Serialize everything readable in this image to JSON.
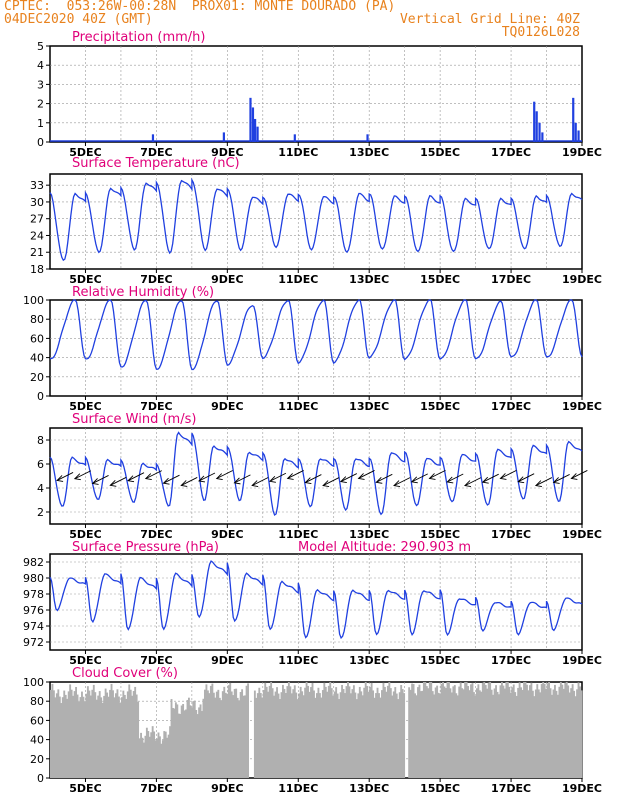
{
  "header": {
    "line1_left": "CPTEC:  053:26W-00:28N  PROX01: MONTE DOURADO (PA)",
    "line2_left": "04DEC2020 40Z (GMT)",
    "line2_right": "Vertical Grid Line: 40Z",
    "line3_right": "TQ0126L028"
  },
  "colors": {
    "header": "#e8821e",
    "title": "#e0007a",
    "series": "#2040e0",
    "cloud": "#b0b0b0",
    "wind_arrow": "#000000"
  },
  "panels": {
    "precip": {
      "title": "Precipitation (mm/h)",
      "yticks": [
        "5",
        "4",
        "3",
        "2",
        "1",
        "0"
      ],
      "xticks": [
        "5DEC",
        "7DEC",
        "9DEC",
        "11DEC",
        "13DEC",
        "15DEC",
        "17DEC",
        "19DEC"
      ]
    },
    "temp": {
      "title": "Surface Temperature (nC)",
      "yticks": [
        "33",
        "30",
        "27",
        "24",
        "21",
        "18"
      ],
      "xticks": [
        "5DEC",
        "7DEC",
        "9DEC",
        "11DEC",
        "13DEC",
        "15DEC",
        "17DEC",
        "19DEC"
      ]
    },
    "rh": {
      "title": "Relative Humidity (%)",
      "yticks": [
        "100",
        "80",
        "60",
        "40",
        "20",
        "0"
      ],
      "xticks": [
        "5DEC",
        "7DEC",
        "9DEC",
        "11DEC",
        "13DEC",
        "15DEC",
        "17DEC",
        "19DEC"
      ]
    },
    "wind": {
      "title": "Surface Wind (m/s)",
      "yticks": [
        "8",
        "6",
        "4",
        "2"
      ],
      "xticks": [
        "5DEC",
        "7DEC",
        "9DEC",
        "11DEC",
        "13DEC",
        "15DEC",
        "17DEC",
        "19DEC"
      ]
    },
    "press": {
      "title": "Surface Pressure (hPa)",
      "subtitle": "Model Altitude: 290.903 m",
      "yticks": [
        "982",
        "980",
        "978",
        "976",
        "974",
        "972"
      ],
      "xticks": [
        "5DEC",
        "7DEC",
        "9DEC",
        "11DEC",
        "13DEC",
        "15DEC",
        "17DEC",
        "19DEC"
      ]
    },
    "cloud": {
      "title": "Cloud Cover (%)",
      "yticks": [
        "100",
        "80",
        "60",
        "40",
        "20",
        "0"
      ],
      "xticks": [
        "5DEC",
        "7DEC",
        "9DEC",
        "11DEC",
        "13DEC",
        "15DEC",
        "17DEC",
        "19DEC"
      ]
    }
  },
  "chart_data": [
    {
      "type": "bar",
      "title": "Precipitation (mm/h)",
      "x_range_days": [
        4,
        19
      ],
      "ylim": [
        0,
        5
      ],
      "events": [
        {
          "day": 6.9,
          "value": 0.4
        },
        {
          "day": 8.9,
          "value": 0.5
        },
        {
          "day": 9.65,
          "value": 2.3
        },
        {
          "day": 9.72,
          "value": 1.8
        },
        {
          "day": 9.78,
          "value": 1.2
        },
        {
          "day": 9.85,
          "value": 0.8
        },
        {
          "day": 10.9,
          "value": 0.4
        },
        {
          "day": 12.95,
          "value": 0.4
        },
        {
          "day": 15.0,
          "value": 0.1
        },
        {
          "day": 17.65,
          "value": 2.1
        },
        {
          "day": 17.72,
          "value": 1.6
        },
        {
          "day": 17.8,
          "value": 1.0
        },
        {
          "day": 17.88,
          "value": 0.5
        },
        {
          "day": 18.75,
          "value": 2.3
        },
        {
          "day": 18.82,
          "value": 1.0
        },
        {
          "day": 18.9,
          "value": 0.6
        }
      ]
    },
    {
      "type": "line",
      "title": "Surface Temperature (nC)",
      "ylim": [
        18,
        35
      ],
      "daily_max": [
        31.5,
        32.5,
        33.5,
        34.0,
        32.5,
        31.0,
        31.5,
        31.0,
        31.5,
        31.0,
        31.0,
        30.5,
        30.5,
        31.0,
        31.5
      ],
      "daily_min": [
        19.5,
        21.0,
        21.5,
        21.0,
        21.5,
        21.5,
        22.0,
        21.5,
        21.0,
        21.5,
        21.0,
        21.0,
        21.5,
        21.5,
        22.0
      ]
    },
    {
      "type": "line",
      "title": "Relative Humidity (%)",
      "ylim": [
        0,
        100
      ],
      "daily_max": [
        100,
        100,
        100,
        100,
        100,
        95,
        100,
        100,
        100,
        100,
        100,
        100,
        98,
        100,
        100
      ],
      "daily_min": [
        38,
        30,
        28,
        28,
        33,
        40,
        35,
        35,
        40,
        38,
        38,
        38,
        40,
        40,
        40
      ]
    },
    {
      "type": "line",
      "title": "Surface Wind (m/s)",
      "ylim": [
        1,
        9
      ],
      "daily_max": [
        6.5,
        6.3,
        6.0,
        8.6,
        7.5,
        7.0,
        6.5,
        6.5,
        6.5,
        7.0,
        6.5,
        6.8,
        7.2,
        7.5,
        7.8
      ],
      "daily_min": [
        2.4,
        3.0,
        2.8,
        2.5,
        3.0,
        3.0,
        1.8,
        2.5,
        2.2,
        1.8,
        2.5,
        2.8,
        2.5,
        3.0,
        2.8
      ]
    },
    {
      "type": "line",
      "title": "Surface Pressure (hPa)",
      "ylim": [
        971,
        983
      ],
      "daily_max": [
        980.0,
        980.5,
        980.0,
        980.5,
        982.0,
        980.5,
        979.5,
        978.5,
        978.5,
        978.5,
        978.5,
        977.5,
        977.0,
        977.0,
        977.5
      ],
      "daily_min": [
        976.0,
        974.5,
        973.5,
        973.5,
        975.0,
        974.5,
        973.5,
        972.5,
        972.5,
        973.0,
        973.0,
        973.0,
        973.5,
        973.0,
        973.5
      ]
    },
    {
      "type": "bar",
      "title": "Cloud Cover (%)",
      "ylim": [
        0,
        100
      ],
      "segments": [
        {
          "from": 4.0,
          "to": 6.5,
          "value": 88
        },
        {
          "from": 6.5,
          "to": 7.4,
          "value": 45
        },
        {
          "from": 7.4,
          "to": 8.3,
          "value": 75
        },
        {
          "from": 8.3,
          "to": 9.6,
          "value": 90
        },
        {
          "from": 9.6,
          "to": 9.75,
          "value": 0
        },
        {
          "from": 9.75,
          "to": 14.0,
          "value": 92
        },
        {
          "from": 14.0,
          "to": 14.1,
          "value": 0
        },
        {
          "from": 14.1,
          "to": 19.0,
          "value": 95
        }
      ]
    }
  ]
}
